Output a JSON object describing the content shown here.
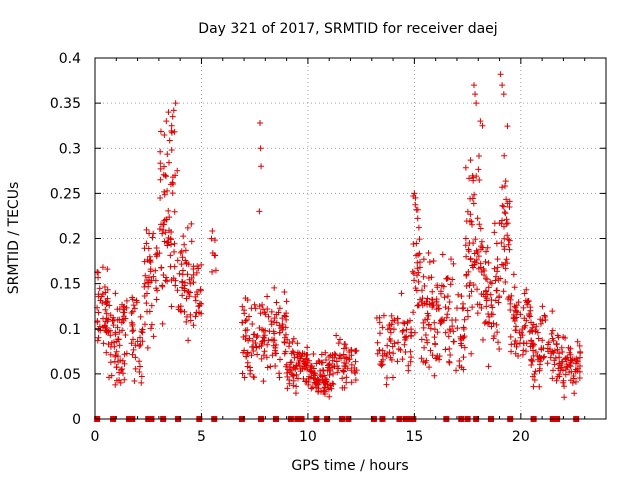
{
  "chart_data": {
    "type": "scatter",
    "title": "Day 321 of 2017, SRMTID for receiver daej",
    "xlabel": "GPS time / hours",
    "ylabel": "SRMTID / TECUs",
    "xlim": [
      0,
      24
    ],
    "ylim": [
      0,
      0.4
    ],
    "xticks": [
      0,
      5,
      10,
      15,
      20
    ],
    "xtick_labels": [
      "0",
      "5",
      "10",
      "15",
      "20"
    ],
    "yticks": [
      0,
      0.05,
      0.1,
      0.15,
      0.2,
      0.25,
      0.3,
      0.35,
      0.4
    ],
    "ytick_labels": [
      "0",
      "0.05",
      "0.1",
      "0.15",
      "0.2",
      "0.25",
      "0.3",
      "0.35",
      "0.4"
    ],
    "grid": true,
    "marker": "+",
    "color": "#e00000",
    "zero_markers_x": [
      0.1,
      0.85,
      1.6,
      1.75,
      2.5,
      2.65,
      3.2,
      3.9,
      4.9,
      5.6,
      6.9,
      7.8,
      8.5,
      9.2,
      9.5,
      9.7,
      10.4,
      10.9,
      11.6,
      11.9,
      13.1,
      13.5,
      14.3,
      14.6,
      14.8,
      14.95,
      16.5,
      17.2,
      17.5,
      17.9,
      18.6,
      19.5,
      20.6,
      21.5,
      21.7,
      22.6
    ],
    "clusters": [
      {
        "x_range": [
          0.05,
          0.6
        ],
        "y_mean": 0.11,
        "y_spread": 0.04,
        "count": 45
      },
      {
        "x_range": [
          0.6,
          1.5
        ],
        "y_mean": 0.09,
        "y_spread": 0.035,
        "count": 70
      },
      {
        "x_range": [
          1.7,
          2.3
        ],
        "y_mean": 0.09,
        "y_spread": 0.035,
        "count": 35
      },
      {
        "x_range": [
          2.3,
          3.0
        ],
        "y_mean": 0.16,
        "y_spread": 0.05,
        "count": 45
      },
      {
        "x_range": [
          3.0,
          3.9
        ],
        "y_mean": 0.22,
        "y_spread": 0.09,
        "count": 75
      },
      {
        "x_range": [
          3.9,
          5.0
        ],
        "y_mean": 0.15,
        "y_spread": 0.04,
        "count": 70
      },
      {
        "x_range": [
          5.4,
          5.7
        ],
        "y_mean": 0.17,
        "y_spread": 0.04,
        "count": 8
      },
      {
        "x_range": [
          6.9,
          8.2
        ],
        "y_mean": 0.09,
        "y_spread": 0.035,
        "count": 80
      },
      {
        "x_range": [
          8.2,
          9.0
        ],
        "y_mean": 0.1,
        "y_spread": 0.04,
        "count": 50
      },
      {
        "x_range": [
          9.0,
          10.0
        ],
        "y_mean": 0.06,
        "y_spread": 0.02,
        "count": 70
      },
      {
        "x_range": [
          10.0,
          11.2
        ],
        "y_mean": 0.05,
        "y_spread": 0.02,
        "count": 90
      },
      {
        "x_range": [
          11.2,
          12.3
        ],
        "y_mean": 0.065,
        "y_spread": 0.02,
        "count": 55
      },
      {
        "x_range": [
          13.2,
          13.7
        ],
        "y_mean": 0.08,
        "y_spread": 0.03,
        "count": 20
      },
      {
        "x_range": [
          13.7,
          14.9
        ],
        "y_mean": 0.09,
        "y_spread": 0.03,
        "count": 55
      },
      {
        "x_range": [
          14.9,
          15.3
        ],
        "y_mean": 0.17,
        "y_spread": 0.06,
        "count": 30
      },
      {
        "x_range": [
          15.3,
          16.8
        ],
        "y_mean": 0.12,
        "y_spread": 0.045,
        "count": 100
      },
      {
        "x_range": [
          16.8,
          17.4
        ],
        "y_mean": 0.1,
        "y_spread": 0.04,
        "count": 30
      },
      {
        "x_range": [
          17.4,
          18.2
        ],
        "y_mean": 0.2,
        "y_spread": 0.08,
        "count": 70
      },
      {
        "x_range": [
          18.2,
          19.0
        ],
        "y_mean": 0.14,
        "y_spread": 0.05,
        "count": 60
      },
      {
        "x_range": [
          19.0,
          19.5
        ],
        "y_mean": 0.2,
        "y_spread": 0.07,
        "count": 40
      },
      {
        "x_range": [
          19.5,
          20.5
        ],
        "y_mean": 0.1,
        "y_spread": 0.035,
        "count": 70
      },
      {
        "x_range": [
          20.5,
          21.5
        ],
        "y_mean": 0.08,
        "y_spread": 0.03,
        "count": 60
      },
      {
        "x_range": [
          21.5,
          22.8
        ],
        "y_mean": 0.06,
        "y_spread": 0.02,
        "count": 80
      }
    ],
    "spikes": [
      {
        "x": 3.35,
        "y": 0.33
      },
      {
        "x": 3.45,
        "y": 0.34
      },
      {
        "x": 3.6,
        "y": 0.325
      },
      {
        "x": 3.65,
        "y": 0.335
      },
      {
        "x": 3.7,
        "y": 0.342
      },
      {
        "x": 7.75,
        "y": 0.328
      },
      {
        "x": 7.78,
        "y": 0.3
      },
      {
        "x": 7.8,
        "y": 0.28
      },
      {
        "x": 7.72,
        "y": 0.23
      },
      {
        "x": 17.8,
        "y": 0.37
      },
      {
        "x": 17.85,
        "y": 0.36
      },
      {
        "x": 17.9,
        "y": 0.35
      },
      {
        "x": 18.1,
        "y": 0.33
      },
      {
        "x": 18.2,
        "y": 0.325
      },
      {
        "x": 19.05,
        "y": 0.382
      },
      {
        "x": 19.12,
        "y": 0.37
      },
      {
        "x": 19.2,
        "y": 0.36
      },
      {
        "x": 15.0,
        "y": 0.25
      },
      {
        "x": 15.05,
        "y": 0.245
      }
    ]
  }
}
